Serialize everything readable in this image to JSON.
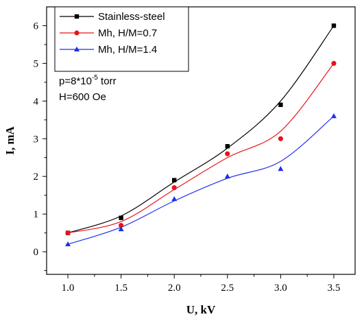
{
  "chart_data": {
    "type": "scatter",
    "xlabel": "U, kV",
    "ylabel": "I, mA",
    "xlim": [
      0.8,
      3.7
    ],
    "ylim": [
      -0.6,
      6.5
    ],
    "xticks": [
      1.0,
      1.5,
      2.0,
      2.5,
      3.0,
      3.5
    ],
    "xtick_labels": [
      "1.0",
      "1.5",
      "2.0",
      "2.5",
      "3.0",
      "3.5"
    ],
    "yticks": [
      0,
      1,
      2,
      3,
      4,
      5,
      6
    ],
    "ytick_labels": [
      "0",
      "1",
      "2",
      "3",
      "4",
      "5",
      "6"
    ],
    "grid": false,
    "legend_position": "top-left",
    "x": [
      1.0,
      1.5,
      2.0,
      2.5,
      3.0,
      3.5
    ],
    "series": [
      {
        "name": "Stainless-steel",
        "marker": "square",
        "color": "#000000",
        "values": [
          0.5,
          0.9,
          1.9,
          2.8,
          3.9,
          6.0
        ],
        "fit": [
          0.5,
          0.95,
          1.85,
          2.75,
          4.0,
          6.0
        ]
      },
      {
        "name": "Mh, H/M=0.7",
        "marker": "circle",
        "color": "#e8141a",
        "values": [
          0.5,
          0.7,
          1.7,
          2.6,
          3.0,
          5.0
        ],
        "fit": [
          0.5,
          0.8,
          1.65,
          2.5,
          3.2,
          5.0
        ]
      },
      {
        "name": "Mh, H/M=1.4",
        "marker": "triangle",
        "color": "#1d2ff0",
        "values": [
          0.2,
          0.6,
          1.4,
          2.0,
          2.2,
          3.6
        ],
        "fit": [
          0.2,
          0.65,
          1.35,
          1.95,
          2.4,
          3.6
        ]
      }
    ],
    "annotations": [
      {
        "base": "p=8*10",
        "sup": "-5",
        "rest": " torr"
      },
      {
        "text": "H=600 Oe"
      }
    ]
  }
}
